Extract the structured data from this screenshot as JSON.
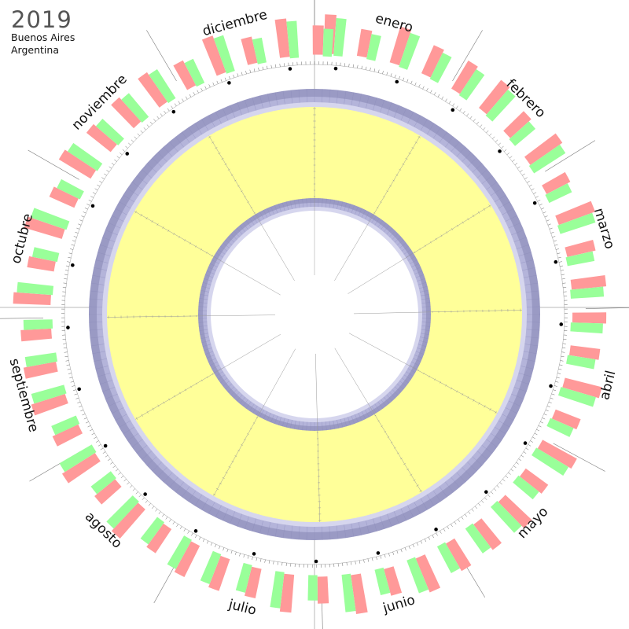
{
  "header": {
    "year": "2019",
    "city": "Buenos Aires",
    "country": "Argentina"
  },
  "months": [
    "enero",
    "febrero",
    "marzo",
    "abril",
    "mayo",
    "junio",
    "julio",
    "agosto",
    "septiembre",
    "octubre",
    "noviembre",
    "diciembre"
  ],
  "month_days": [
    31,
    28,
    31,
    30,
    31,
    30,
    31,
    31,
    30,
    31,
    30,
    31
  ],
  "colors": {
    "background": "#ffffff",
    "daylight_band": "#ffff99",
    "twilight_dark": "#9a9ac4",
    "twilight_light": "#d6d6ee",
    "tide_high": "#ff9999",
    "tide_low": "#99ff99",
    "axis": "#777777"
  }
}
